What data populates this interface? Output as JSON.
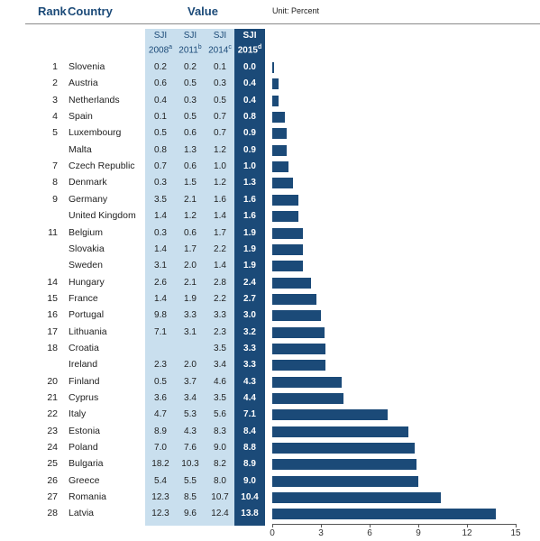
{
  "header": {
    "rank_label": "Rank",
    "country_label": "Country",
    "value_label": "Value",
    "unit_label": "Unit: Percent"
  },
  "columns": [
    {
      "line1": "SJI",
      "line2": "2008",
      "sup": "a"
    },
    {
      "line1": "SJI",
      "line2": "2011",
      "sup": "b"
    },
    {
      "line1": "SJI",
      "line2": "2014",
      "sup": "c"
    },
    {
      "line1": "SJI",
      "line2": "2015",
      "sup": "d"
    }
  ],
  "colors": {
    "bar": "#1b4a78",
    "light_column": "#c9dfee",
    "header_text": "#1b4a78"
  },
  "rows": [
    {
      "rank": "1",
      "country": "Slovenia",
      "v2008": "0.2",
      "v2011": "0.2",
      "v2014": "0.1",
      "v2015": "0.0"
    },
    {
      "rank": "2",
      "country": "Austria",
      "v2008": "0.6",
      "v2011": "0.5",
      "v2014": "0.3",
      "v2015": "0.4"
    },
    {
      "rank": "3",
      "country": "Netherlands",
      "v2008": "0.4",
      "v2011": "0.3",
      "v2014": "0.5",
      "v2015": "0.4"
    },
    {
      "rank": "4",
      "country": "Spain",
      "v2008": "0.1",
      "v2011": "0.5",
      "v2014": "0.7",
      "v2015": "0.8"
    },
    {
      "rank": "5",
      "country": "Luxembourg",
      "v2008": "0.5",
      "v2011": "0.6",
      "v2014": "0.7",
      "v2015": "0.9"
    },
    {
      "rank": "",
      "country": "Malta",
      "v2008": "0.8",
      "v2011": "1.3",
      "v2014": "1.2",
      "v2015": "0.9"
    },
    {
      "rank": "7",
      "country": "Czech Republic",
      "v2008": "0.7",
      "v2011": "0.6",
      "v2014": "1.0",
      "v2015": "1.0"
    },
    {
      "rank": "8",
      "country": "Denmark",
      "v2008": "0.3",
      "v2011": "1.5",
      "v2014": "1.2",
      "v2015": "1.3"
    },
    {
      "rank": "9",
      "country": "Germany",
      "v2008": "3.5",
      "v2011": "2.1",
      "v2014": "1.6",
      "v2015": "1.6"
    },
    {
      "rank": "",
      "country": "United Kingdom",
      "v2008": "1.4",
      "v2011": "1.2",
      "v2014": "1.4",
      "v2015": "1.6"
    },
    {
      "rank": "11",
      "country": "Belgium",
      "v2008": "0.3",
      "v2011": "0.6",
      "v2014": "1.7",
      "v2015": "1.9"
    },
    {
      "rank": "",
      "country": "Slovakia",
      "v2008": "1.4",
      "v2011": "1.7",
      "v2014": "2.2",
      "v2015": "1.9"
    },
    {
      "rank": "",
      "country": "Sweden",
      "v2008": "3.1",
      "v2011": "2.0",
      "v2014": "1.4",
      "v2015": "1.9"
    },
    {
      "rank": "14",
      "country": "Hungary",
      "v2008": "2.6",
      "v2011": "2.1",
      "v2014": "2.8",
      "v2015": "2.4"
    },
    {
      "rank": "15",
      "country": "France",
      "v2008": "1.4",
      "v2011": "1.9",
      "v2014": "2.2",
      "v2015": "2.7"
    },
    {
      "rank": "16",
      "country": "Portugal",
      "v2008": "9.8",
      "v2011": "3.3",
      "v2014": "3.3",
      "v2015": "3.0"
    },
    {
      "rank": "17",
      "country": "Lithuania",
      "v2008": "7.1",
      "v2011": "3.1",
      "v2014": "2.3",
      "v2015": "3.2"
    },
    {
      "rank": "18",
      "country": "Croatia",
      "v2008": "",
      "v2011": "",
      "v2014": "3.5",
      "v2015": "3.3"
    },
    {
      "rank": "",
      "country": "Ireland",
      "v2008": "2.3",
      "v2011": "2.0",
      "v2014": "3.4",
      "v2015": "3.3"
    },
    {
      "rank": "20",
      "country": "Finland",
      "v2008": "0.5",
      "v2011": "3.7",
      "v2014": "4.6",
      "v2015": "4.3"
    },
    {
      "rank": "21",
      "country": "Cyprus",
      "v2008": "3.6",
      "v2011": "3.4",
      "v2014": "3.5",
      "v2015": "4.4"
    },
    {
      "rank": "22",
      "country": "Italy",
      "v2008": "4.7",
      "v2011": "5.3",
      "v2014": "5.6",
      "v2015": "7.1"
    },
    {
      "rank": "23",
      "country": "Estonia",
      "v2008": "8.9",
      "v2011": "4.3",
      "v2014": "8.3",
      "v2015": "8.4"
    },
    {
      "rank": "24",
      "country": "Poland",
      "v2008": "7.0",
      "v2011": "7.6",
      "v2014": "9.0",
      "v2015": "8.8"
    },
    {
      "rank": "25",
      "country": "Bulgaria",
      "v2008": "18.2",
      "v2011": "10.3",
      "v2014": "8.2",
      "v2015": "8.9"
    },
    {
      "rank": "26",
      "country": "Greece",
      "v2008": "5.4",
      "v2011": "5.5",
      "v2014": "8.0",
      "v2015": "9.0"
    },
    {
      "rank": "27",
      "country": "Romania",
      "v2008": "12.3",
      "v2011": "8.5",
      "v2014": "10.7",
      "v2015": "10.4"
    },
    {
      "rank": "28",
      "country": "Latvia",
      "v2008": "12.3",
      "v2011": "9.6",
      "v2014": "12.4",
      "v2015": "13.8"
    }
  ],
  "chart_data": {
    "type": "bar",
    "orientation": "horizontal",
    "categories": [
      "Slovenia",
      "Austria",
      "Netherlands",
      "Spain",
      "Luxembourg",
      "Malta",
      "Czech Republic",
      "Denmark",
      "Germany",
      "United Kingdom",
      "Belgium",
      "Slovakia",
      "Sweden",
      "Hungary",
      "France",
      "Portugal",
      "Lithuania",
      "Croatia",
      "Ireland",
      "Finland",
      "Cyprus",
      "Italy",
      "Estonia",
      "Poland",
      "Bulgaria",
      "Greece",
      "Romania",
      "Latvia"
    ],
    "series": [
      {
        "values": [
          0.0,
          0.4,
          0.4,
          0.8,
          0.9,
          0.9,
          1.0,
          1.3,
          1.6,
          1.6,
          1.9,
          1.9,
          1.9,
          2.4,
          2.7,
          3.0,
          3.2,
          3.3,
          3.3,
          4.3,
          4.4,
          7.1,
          8.4,
          8.8,
          8.9,
          9.0,
          10.4,
          13.8
        ]
      }
    ],
    "xlim": [
      0,
      15
    ],
    "xticks": [
      "0",
      "3",
      "6",
      "9",
      "12",
      "15"
    ],
    "grid": false
  }
}
